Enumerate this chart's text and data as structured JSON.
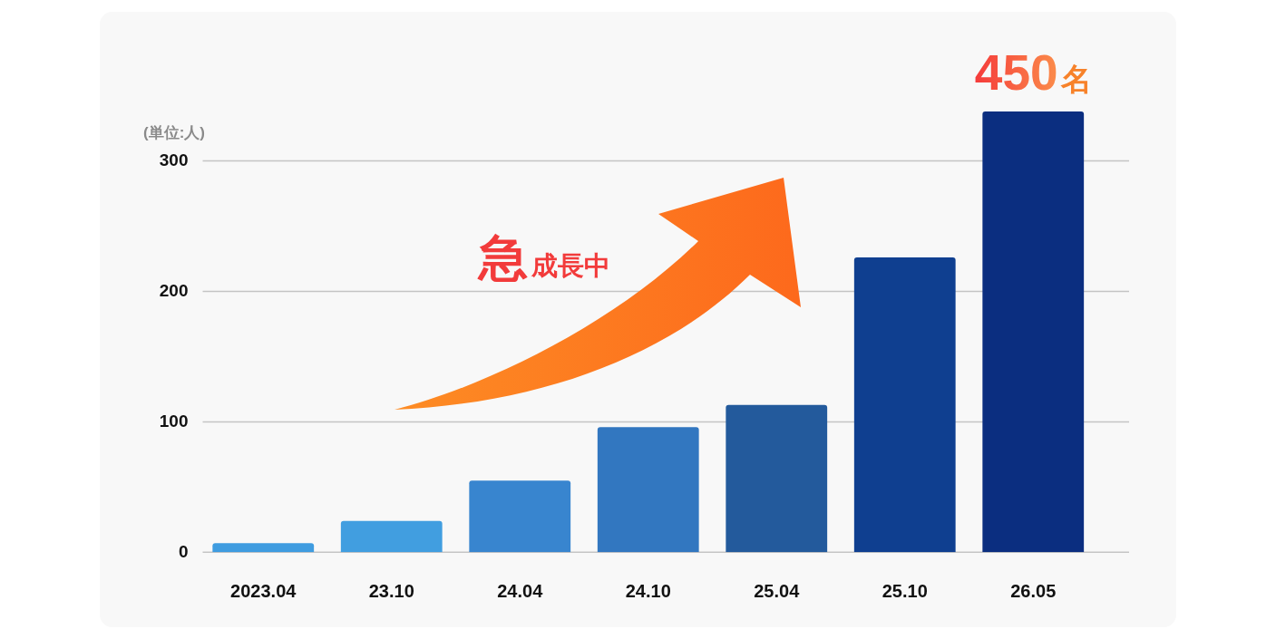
{
  "chart_data": {
    "type": "bar",
    "ylabel": "(単位:人)",
    "categories": [
      "2023.04",
      "23.10",
      "24.04",
      "24.10",
      "25.04",
      "25.10",
      "26.05"
    ],
    "values": [
      7,
      24,
      55,
      96,
      113,
      226,
      338
    ],
    "colors": [
      "#3f9ce0",
      "#419ee0",
      "#3885cf",
      "#3277c0",
      "#235a9c",
      "#0f3f90",
      "#0b2e80"
    ],
    "ylim": [
      0,
      340
    ],
    "yticks": [
      0,
      100,
      200,
      300
    ],
    "grid": "y",
    "annotations": [
      "急成長中",
      {
        "text": "450名",
        "x": "26.05",
        "y": 338
      }
    ]
  }
}
